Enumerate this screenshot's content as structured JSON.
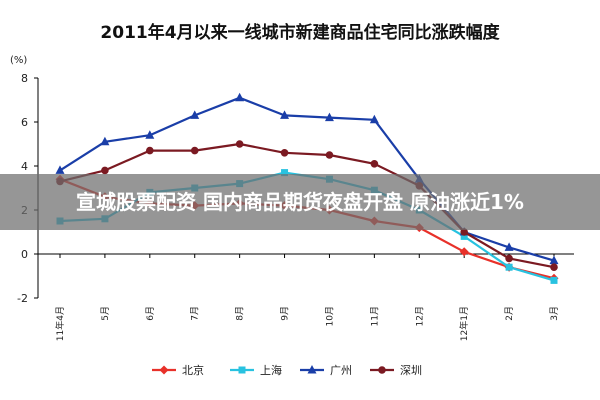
{
  "chart_data": {
    "type": "line",
    "title": "2011年4月以来一线城市新建商品住宅同比涨跌幅度",
    "ylabel": "(%)",
    "xlabel": "",
    "ylim": [
      -2,
      8
    ],
    "yticks": [
      -2,
      0,
      2,
      4,
      6,
      8
    ],
    "categories": [
      "11年4月",
      "5月",
      "6月",
      "7月",
      "8月",
      "9月",
      "10月",
      "11月",
      "12月",
      "12年1月",
      "2月",
      "3月"
    ],
    "grid": false,
    "legend_position": "bottom",
    "series": [
      {
        "name": "北京",
        "color": "#e8312a",
        "marker": "diamond",
        "values": [
          3.4,
          2.6,
          2.3,
          2.2,
          2.3,
          2.2,
          2.0,
          1.5,
          1.2,
          0.1,
          -0.6,
          -1.1
        ]
      },
      {
        "name": "上海",
        "color": "#28c2e0",
        "marker": "square",
        "values": [
          1.5,
          1.6,
          2.8,
          3.0,
          3.2,
          3.7,
          3.4,
          2.9,
          2.0,
          0.8,
          -0.6,
          -1.2
        ]
      },
      {
        "name": "广州",
        "color": "#1a3ea8",
        "marker": "triangle",
        "values": [
          3.8,
          5.1,
          5.4,
          6.3,
          7.1,
          6.3,
          6.2,
          6.1,
          3.4,
          1.0,
          0.3,
          -0.3
        ]
      },
      {
        "name": "深圳",
        "color": "#7b1a22",
        "marker": "circle",
        "values": [
          3.3,
          3.8,
          4.7,
          4.7,
          5.0,
          4.6,
          4.5,
          4.1,
          3.1,
          1.0,
          -0.2,
          -0.6
        ]
      }
    ]
  },
  "overlay": {
    "banner_text": "宣城股票配资 国内商品期货夜盘开盘 原油涨近1%"
  }
}
